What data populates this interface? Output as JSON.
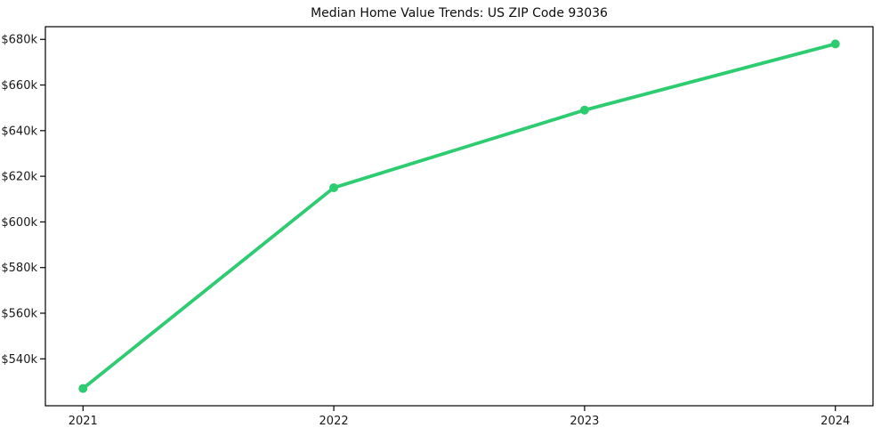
{
  "chart_data": {
    "type": "line",
    "title": "Median Home Value Trends: US ZIP Code 93036",
    "x": [
      2021,
      2022,
      2023,
      2024
    ],
    "x_tick_labels": [
      "2021",
      "2022",
      "2023",
      "2024"
    ],
    "series": [
      {
        "name": "Median Home Value",
        "values": [
          527000,
          615000,
          649000,
          678000
        ]
      }
    ],
    "y_tick_values": [
      540000,
      560000,
      580000,
      600000,
      620000,
      640000,
      660000,
      680000
    ],
    "y_tick_labels": [
      "$540k",
      "$560k",
      "$580k",
      "$600k",
      "$620k",
      "$640k",
      "$660k",
      "$680k"
    ],
    "xlim": [
      2020.85,
      2024.15
    ],
    "ylim": [
      519450,
      685550
    ],
    "grid": false,
    "legend_position": "none",
    "line_color": "#2ecc71",
    "marker": "circle",
    "marker_color": "#2ecc71",
    "axis_color": "#000000",
    "tick_label_color": "#1a1a1a",
    "title_color": "#0d0d0d",
    "background_color": "#ffffff"
  }
}
